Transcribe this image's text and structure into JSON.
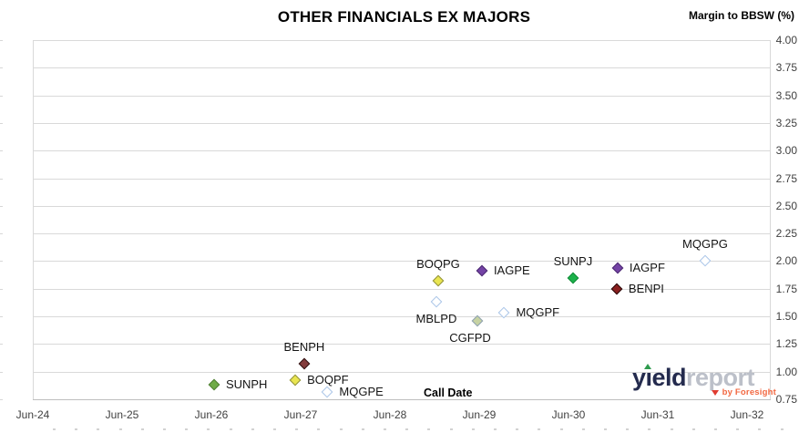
{
  "header": {
    "title": "OTHER FINANCIALS EX MAJORS",
    "right_axis_title": "Margin to BBSW (%)"
  },
  "logo": {
    "word1": "yield",
    "word2": "report",
    "byline": "by Foresight",
    "colors": {
      "navy": "#242B4E",
      "gray": "#BCC0C9",
      "orange": "#F26841",
      "green": "#2E9B4E",
      "red": "#E03C31"
    }
  },
  "chart_data": {
    "type": "scatter",
    "title": "OTHER FINANCIALS EX MAJORS",
    "xlabel": "Call Date",
    "ylabel": "Margin to BBSW (%)",
    "x_tick_labels": [
      "Jun-24",
      "Jun-25",
      "Jun-26",
      "Jun-27",
      "Jun-28",
      "Jun-29",
      "Jun-30",
      "Jun-31",
      "Jun-32"
    ],
    "x_unit": "years after Jun-24",
    "ylim": [
      0.75,
      4.0
    ],
    "y_step": 0.25,
    "grid": "horizontal",
    "legend": "none",
    "colors": {
      "grid": "#D9D9D9",
      "axis": "#BFBFBF",
      "tick_text": "#404040",
      "point_label_text": "#141414"
    },
    "points": [
      {
        "label": "SUNPH",
        "x": 2.03,
        "y": 0.88,
        "label_pos": "right",
        "marker": "filled",
        "fill": "#6FAB47",
        "stroke": "#4E7D33"
      },
      {
        "label": "BOQPF",
        "x": 2.94,
        "y": 0.92,
        "label_pos": "right",
        "marker": "filled",
        "fill": "#E9E550",
        "stroke": "#8F8F3C"
      },
      {
        "label": "MQGPE",
        "x": 3.3,
        "y": 0.82,
        "label_pos": "right",
        "marker": "open",
        "fill": "#FFFFFF",
        "stroke": "#A9C5E8"
      },
      {
        "label": "BENPH",
        "x": 3.04,
        "y": 1.07,
        "label_pos": "above",
        "marker": "filled",
        "fill": "#833B3B",
        "stroke": "#2E1212"
      },
      {
        "label": "MBLPD",
        "x": 4.52,
        "y": 1.63,
        "label_pos": "below",
        "marker": "open",
        "fill": "#FFFFFF",
        "stroke": "#A9C5E8"
      },
      {
        "label": "BOQPG",
        "x": 4.54,
        "y": 1.82,
        "label_pos": "above",
        "marker": "filled",
        "fill": "#E9E550",
        "stroke": "#8F8F3C"
      },
      {
        "label": "CGFPD",
        "x": 4.98,
        "y": 1.46,
        "label_pos": "below",
        "dx": -8,
        "marker": "filled",
        "fill": "#C6D2A2",
        "stroke": "#8CA0B3"
      },
      {
        "label": "IAGPE",
        "x": 5.03,
        "y": 1.91,
        "label_pos": "right",
        "marker": "filled",
        "fill": "#7443A5",
        "stroke": "#4A2870"
      },
      {
        "label": "MQGPF",
        "x": 5.28,
        "y": 1.53,
        "label_pos": "right",
        "marker": "open",
        "fill": "#FFFFFF",
        "stroke": "#A9C5E8"
      },
      {
        "label": "SUNPJ",
        "x": 6.05,
        "y": 1.85,
        "label_pos": "above",
        "marker": "filled",
        "fill": "#1CB24B",
        "stroke": "#0F8A36"
      },
      {
        "label": "BENPI",
        "x": 6.54,
        "y": 1.75,
        "label_pos": "right",
        "marker": "filled",
        "fill": "#8A1F1F",
        "stroke": "#250808"
      },
      {
        "label": "IAGPF",
        "x": 6.55,
        "y": 1.94,
        "label_pos": "right",
        "marker": "filled",
        "fill": "#7443A5",
        "stroke": "#4A2870"
      },
      {
        "label": "MQGPG",
        "x": 7.53,
        "y": 2.0,
        "label_pos": "above",
        "marker": "open",
        "fill": "#FFFFFF",
        "stroke": "#A9C5E8"
      }
    ]
  }
}
